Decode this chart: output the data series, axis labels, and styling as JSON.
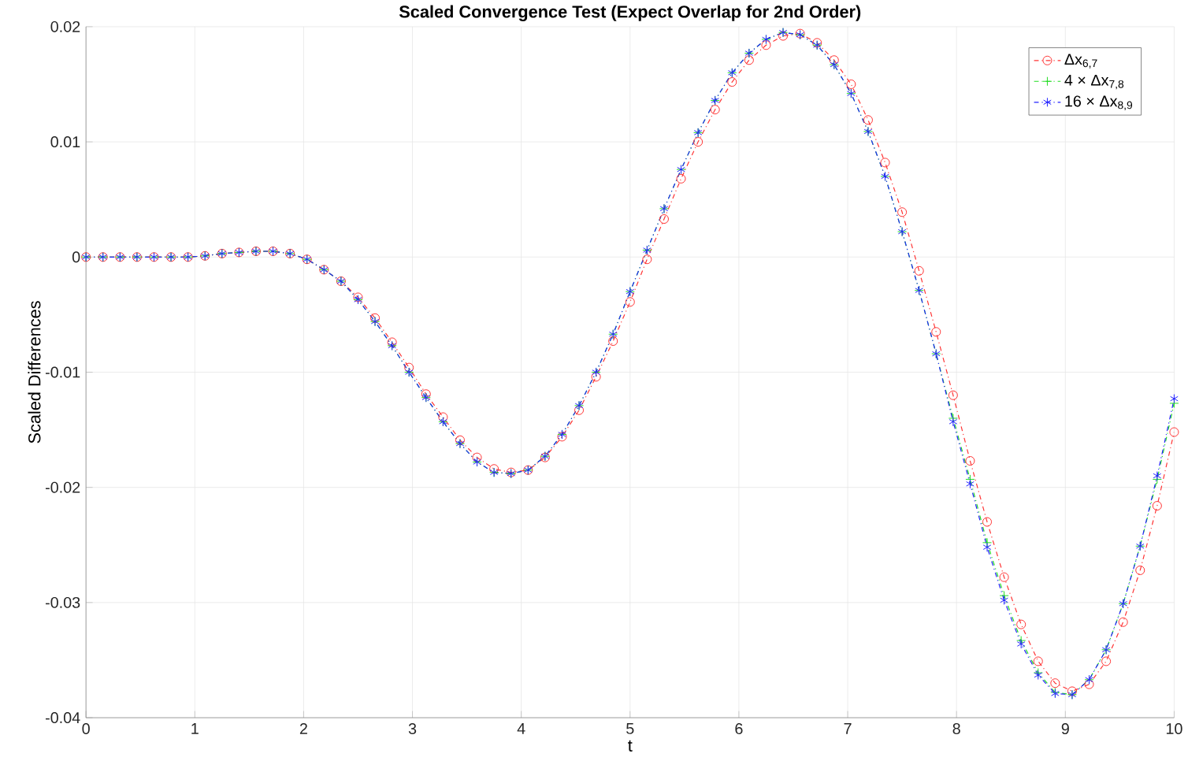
{
  "chart_data": {
    "type": "line",
    "title": "Scaled Convergence Test (Expect Overlap for 2nd Order)",
    "xlabel": "t",
    "ylabel": "Scaled Differences",
    "x": [
      0,
      0.15625,
      0.3125,
      0.46875,
      0.625,
      0.78125,
      0.9375,
      1.09375,
      1.25,
      1.40625,
      1.5625,
      1.71875,
      1.875,
      2.03125,
      2.1875,
      2.34375,
      2.5,
      2.65625,
      2.8125,
      2.96875,
      3.125,
      3.28125,
      3.4375,
      3.59375,
      3.75,
      3.90625,
      4.0625,
      4.21875,
      4.375,
      4.53125,
      4.6875,
      4.84375,
      5,
      5.15625,
      5.3125,
      5.46875,
      5.625,
      5.78125,
      5.9375,
      6.09375,
      6.25,
      6.40625,
      6.5625,
      6.71875,
      6.875,
      7.03125,
      7.1875,
      7.34375,
      7.5,
      7.65625,
      7.8125,
      7.96875,
      8.125,
      8.28125,
      8.4375,
      8.59375,
      8.75,
      8.90625,
      9.0625,
      9.21875,
      9.375,
      9.53125,
      9.6875,
      9.84375,
      10
    ],
    "series": [
      {
        "name": "Δx$_{6,7}$",
        "color": "#ff3333",
        "marker": "circle",
        "values": [
          0,
          0,
          0,
          0,
          0,
          0,
          0,
          0.0001,
          0.0003,
          0.0004,
          0.0005,
          0.0005,
          0.0003,
          -0.0002,
          -0.0011,
          -0.0021,
          -0.0035,
          -0.0053,
          -0.0074,
          -0.0096,
          -0.0119,
          -0.0139,
          -0.0159,
          -0.0174,
          -0.0184,
          -0.0187,
          -0.0185,
          -0.0174,
          -0.0156,
          -0.0133,
          -0.0104,
          -0.0073,
          -0.0039,
          -0.0002,
          0.0033,
          0.0068,
          0.01,
          0.0128,
          0.0152,
          0.0171,
          0.0184,
          0.0192,
          0.0194,
          0.0186,
          0.0171,
          0.015,
          0.0119,
          0.0082,
          0.0039,
          -0.0012,
          -0.0065,
          -0.012,
          -0.0177,
          -0.023,
          -0.0278,
          -0.0319,
          -0.0351,
          -0.037,
          -0.0377,
          -0.0371,
          -0.0351,
          -0.0317,
          -0.0272,
          -0.0216,
          -0.0152
        ]
      },
      {
        "name": "4 × Δx$_{7,8}$",
        "color": "#22dd22",
        "marker": "cross",
        "values": [
          0,
          0,
          0,
          0,
          0,
          0,
          0,
          0.0001,
          0.0003,
          0.0004,
          0.0005,
          0.0005,
          0.0003,
          -0.0002,
          -0.0011,
          -0.0021,
          -0.0037,
          -0.0056,
          -0.0077,
          -0.01,
          -0.0122,
          -0.0143,
          -0.0162,
          -0.0178,
          -0.0187,
          -0.0188,
          -0.0185,
          -0.0173,
          -0.0154,
          -0.0129,
          -0.01,
          -0.0067,
          -0.003,
          0.0006,
          0.0042,
          0.0076,
          0.0108,
          0.0136,
          0.016,
          0.0177,
          0.0189,
          0.0195,
          0.0193,
          0.0184,
          0.0167,
          0.0142,
          0.0109,
          0.007,
          0.0022,
          -0.0029,
          -0.0084,
          -0.014,
          -0.0193,
          -0.0248,
          -0.0294,
          -0.0333,
          -0.0361,
          -0.0378,
          -0.038,
          -0.0367,
          -0.0341,
          -0.0301,
          -0.0251,
          -0.0193,
          -0.0127
        ]
      },
      {
        "name": "16 × Δx$_{8,9}$",
        "color": "#2222ff",
        "marker": "cross",
        "values": [
          0,
          0,
          0,
          0,
          0,
          0,
          0,
          0.0001,
          0.0003,
          0.0004,
          0.0005,
          0.0005,
          0.0003,
          -0.0002,
          -0.0011,
          -0.0021,
          -0.0037,
          -0.0056,
          -0.0077,
          -0.01,
          -0.0122,
          -0.0143,
          -0.0162,
          -0.0178,
          -0.0187,
          -0.0188,
          -0.0185,
          -0.0173,
          -0.0154,
          -0.0129,
          -0.01,
          -0.0067,
          -0.003,
          0.0006,
          0.0042,
          0.0076,
          0.0108,
          0.0136,
          0.016,
          0.0177,
          0.0189,
          0.0195,
          0.0193,
          0.0184,
          0.0167,
          0.0142,
          0.0109,
          0.007,
          0.0022,
          -0.0029,
          -0.0084,
          -0.0143,
          -0.0197,
          -0.0252,
          -0.0298,
          -0.0336,
          -0.0363,
          -0.0379,
          -0.038,
          -0.0367,
          -0.0341,
          -0.0301,
          -0.0251,
          -0.019,
          -0.0123
        ]
      }
    ],
    "xlim": [
      0,
      10
    ],
    "ylim": [
      -0.04,
      0.02
    ],
    "xticks": [
      0,
      1,
      2,
      3,
      4,
      5,
      6,
      7,
      8,
      9,
      10
    ],
    "yticks": [
      -0.04,
      -0.03,
      -0.02,
      -0.01,
      0,
      0.01,
      0.02
    ],
    "grid": true,
    "legend": "top right",
    "line_style": "dashdot"
  }
}
